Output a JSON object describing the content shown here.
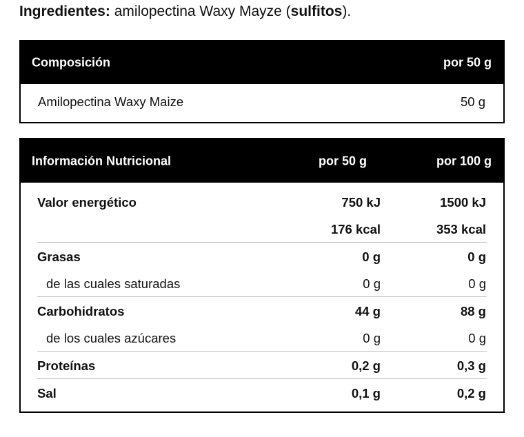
{
  "ingredients": {
    "label": "Ingredientes:",
    "text_before": " amilopectina Waxy Mayze (",
    "allergen": "sulfitos",
    "text_after": ")."
  },
  "composition": {
    "header_label": "Composición",
    "header_amount": "por 50 g",
    "rows": [
      {
        "name": "Amilopectina Waxy Maize",
        "amount": "50 g"
      }
    ]
  },
  "nutrition": {
    "header_label": "Información Nutricional",
    "header_col1": "por 50 g",
    "header_col2": "por 100 g",
    "rows": [
      {
        "name": "Valor energético",
        "v50": "750 kJ",
        "v100": "1500 kJ",
        "bold": true
      },
      {
        "name": "",
        "v50": "176 kcal",
        "v100": "353 kcal",
        "bold": true
      },
      {
        "name": "Grasas",
        "v50": "0 g",
        "v100": "0 g",
        "bold": true
      },
      {
        "name": "de las cuales saturadas",
        "v50": "0 g",
        "v100": "0 g",
        "bold": false
      },
      {
        "name": "Carbohidratos",
        "v50": "44 g",
        "v100": "88 g",
        "bold": true
      },
      {
        "name": "de los cuales azúcares",
        "v50": "0 g",
        "v100": "0 g",
        "bold": false
      },
      {
        "name": "Proteínas",
        "v50": "0,2 g",
        "v100": "0,3 g",
        "bold": true
      },
      {
        "name": "Sal",
        "v50": "0,1 g",
        "v100": "0,2 g",
        "bold": true
      }
    ]
  }
}
